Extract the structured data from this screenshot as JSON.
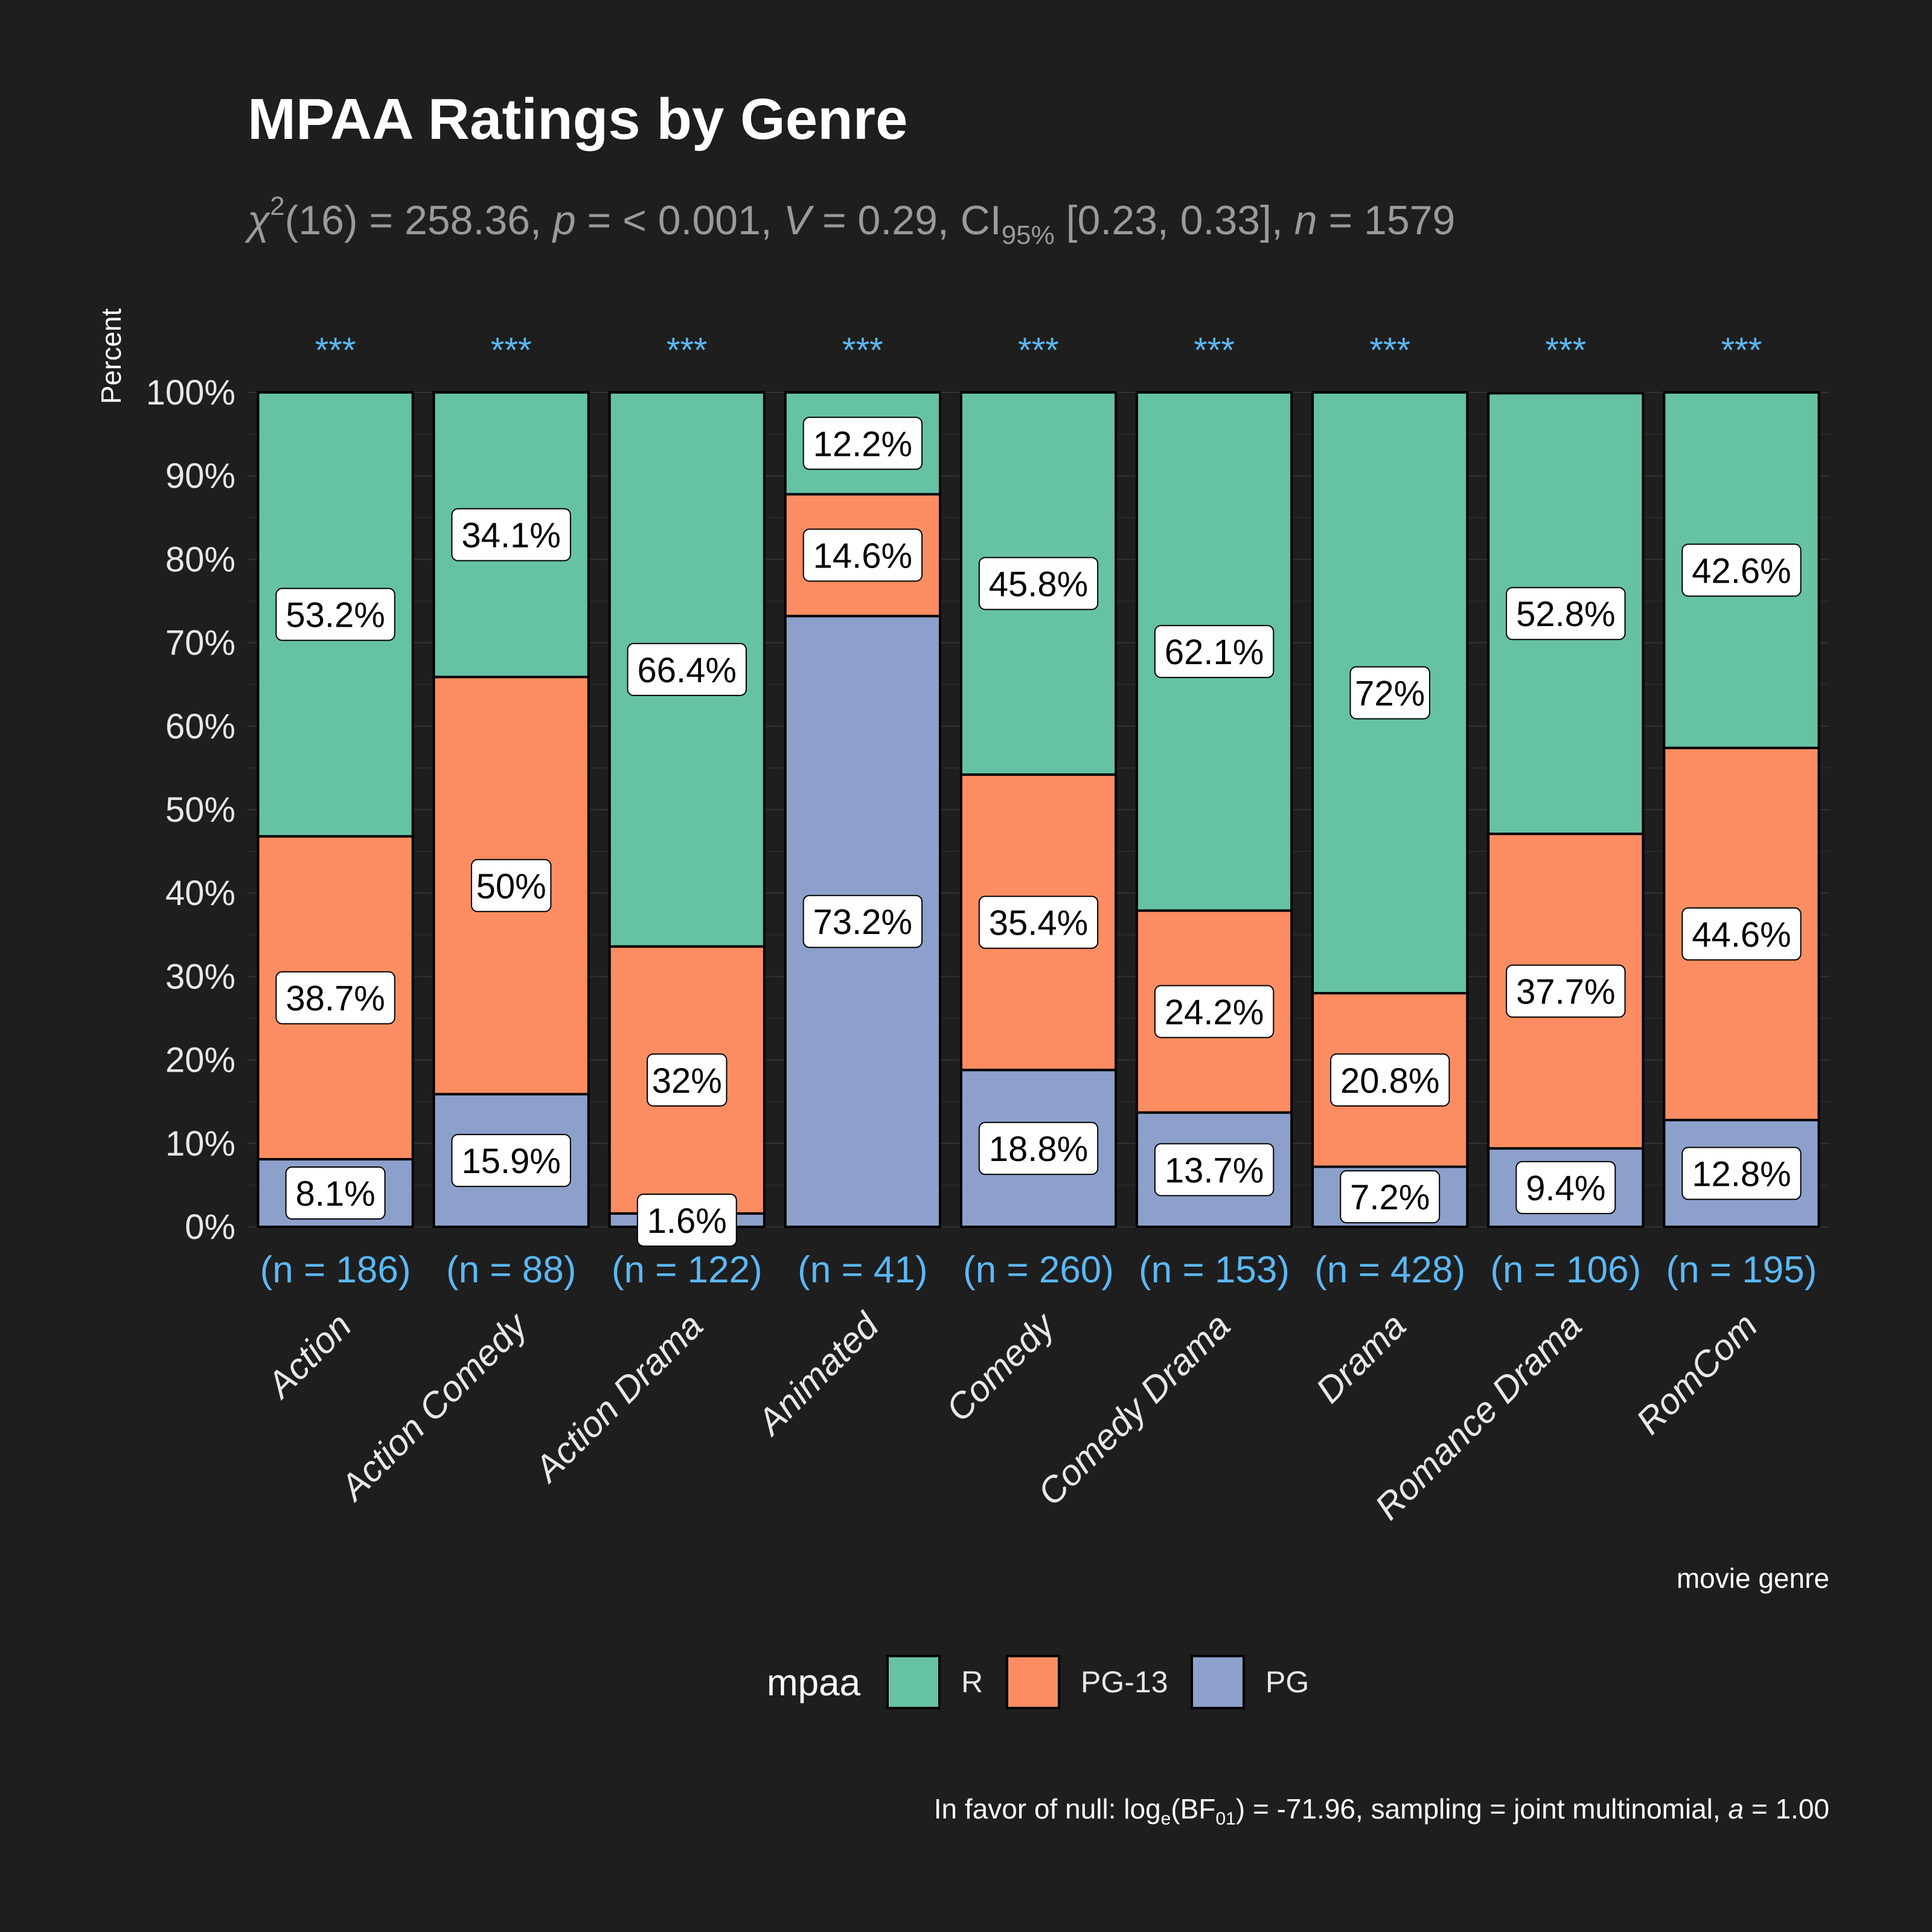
{
  "chart_data": {
    "type": "bar",
    "stacked": true,
    "title": "MPAA Ratings by Genre",
    "subtitle": {
      "stat_symbol": "χ",
      "stat_exponent": "2",
      "df_and_value": "(16) = 258.36, ",
      "p_symbol": "p",
      "p_value": " = < 0.001, ",
      "v_symbol": "V",
      "v_value": " = 0.29, CI",
      "ci_subscript": "95%",
      "ci_value": " [0.23, 0.33], ",
      "n_symbol": "n",
      "n_value": " = 1579"
    },
    "ylabel": "Percent",
    "xlabel": "movie genre",
    "ylim": [
      0,
      100
    ],
    "yticks": [
      "0%",
      "10%",
      "20%",
      "30%",
      "40%",
      "50%",
      "60%",
      "70%",
      "80%",
      "90%",
      "100%"
    ],
    "categories": [
      "Action",
      "Action Comedy",
      "Action Drama",
      "Animated",
      "Comedy",
      "Comedy Drama",
      "Drama",
      "Romance Drama",
      "RomCom"
    ],
    "counts": [
      "(n = 186)",
      "(n = 88)",
      "(n = 122)",
      "(n = 41)",
      "(n = 260)",
      "(n = 153)",
      "(n = 428)",
      "(n = 106)",
      "(n = 195)"
    ],
    "significance": [
      "***",
      "***",
      "***",
      "***",
      "***",
      "***",
      "***",
      "***",
      "***"
    ],
    "series": [
      {
        "name": "PG",
        "color": "#8da0cb",
        "values": [
          8.1,
          15.9,
          1.6,
          73.2,
          18.8,
          13.7,
          7.2,
          9.4,
          12.8
        ],
        "labels": [
          "8.1%",
          "15.9%",
          "1.6%",
          "73.2%",
          "18.8%",
          "13.7%",
          "7.2%",
          "9.4%",
          "12.8%"
        ]
      },
      {
        "name": "PG-13",
        "color": "#fc8d62",
        "values": [
          38.7,
          50,
          32,
          14.6,
          35.4,
          24.2,
          20.8,
          37.7,
          44.6
        ],
        "labels": [
          "38.7%",
          "50%",
          "32%",
          "14.6%",
          "35.4%",
          "24.2%",
          "20.8%",
          "37.7%",
          "44.6%"
        ]
      },
      {
        "name": "R",
        "color": "#66c2a5",
        "values": [
          53.2,
          34.1,
          66.4,
          12.2,
          45.8,
          62.1,
          72,
          52.8,
          42.6
        ],
        "labels": [
          "53.2%",
          "34.1%",
          "66.4%",
          "12.2%",
          "45.8%",
          "62.1%",
          "72%",
          "52.8%",
          "42.6%"
        ]
      }
    ],
    "legend": {
      "title": "mpaa",
      "position": "bottom",
      "order": [
        "R",
        "PG-13",
        "PG"
      ]
    },
    "caption": {
      "prefix": "In favor of null: log",
      "log_subscript": "e",
      "bf": "(BF",
      "bf_subscript": "01",
      "rest": ") = -71.96, sampling = joint multinomial, ",
      "a_symbol": "a",
      "a_value": " = 1.00"
    },
    "colors": {
      "background": "#1e1e1e",
      "significance": "#5bb8f5",
      "counts": "#5bb8f5"
    }
  }
}
